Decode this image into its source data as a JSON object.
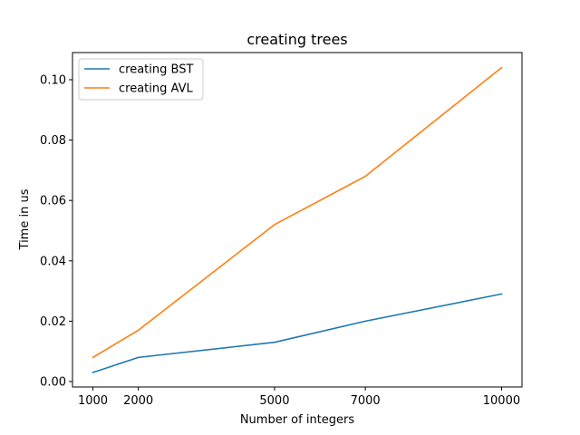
{
  "chart_data": {
    "type": "line",
    "title": "creating trees",
    "xlabel": "Number of integers",
    "ylabel": "Time in us",
    "x": [
      1000,
      2000,
      5000,
      7000,
      10000
    ],
    "xticks": [
      "1000",
      "2000",
      "5000",
      "7000",
      "10000"
    ],
    "yticks": [
      "0.00",
      "0.02",
      "0.04",
      "0.06",
      "0.08",
      "0.10"
    ],
    "xlim": [
      550,
      10450
    ],
    "ylim": [
      -0.0018,
      0.109
    ],
    "grid": false,
    "legend_position": "upper-left",
    "series": [
      {
        "name": "creating BST",
        "color": "#1f77b4",
        "values": [
          0.003,
          0.008,
          0.013,
          0.02,
          0.029
        ]
      },
      {
        "name": "creating AVL",
        "color": "#ff7f0e",
        "values": [
          0.008,
          0.017,
          0.052,
          0.068,
          0.104
        ]
      }
    ]
  }
}
